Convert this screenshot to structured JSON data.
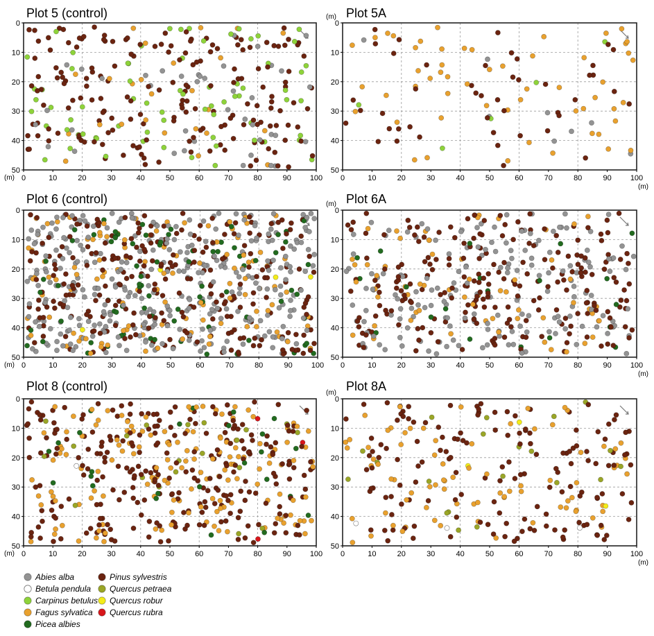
{
  "chart_data": {
    "type": "scatter",
    "legend_placement": "bottom-left",
    "axis_unit": "(m)",
    "xlim": [
      0,
      100
    ],
    "ylim": [
      0,
      50
    ],
    "xticks": [
      0,
      10,
      20,
      30,
      40,
      50,
      60,
      70,
      80,
      90,
      100
    ],
    "yticks": [
      0,
      10,
      20,
      30,
      40,
      50
    ],
    "species": [
      {
        "key": "aa",
        "name": "Abies alba",
        "color": "#939393"
      },
      {
        "key": "bp",
        "name": "Betula pendula",
        "color": "#ffffff"
      },
      {
        "key": "cb",
        "name": "Carpinus betulus",
        "color": "#8ed33a"
      },
      {
        "key": "fs",
        "name": "Fagus sylvatica",
        "color": "#e9a12e"
      },
      {
        "key": "pa",
        "name": "Picea albies",
        "color": "#226b1f"
      },
      {
        "key": "ps",
        "name": "Pinus sylvestris",
        "color": "#6b2410"
      },
      {
        "key": "qp",
        "name": "Quercus petraea",
        "color": "#9aa627"
      },
      {
        "key": "qr",
        "name": "Quercus robur",
        "color": "#f3ec1a"
      },
      {
        "key": "qru",
        "name": "Quercus rubra",
        "color": "#d8161b"
      }
    ],
    "plots": [
      {
        "id": "p5",
        "title": "Plot 5 (control)",
        "approx_counts": {
          "ps": 180,
          "cb": 70,
          "aa": 40,
          "fs": 25
        },
        "points_sampled": true
      },
      {
        "id": "p5a",
        "title": "Plot 5A",
        "approx_counts": {
          "fs": 55,
          "ps": 45,
          "aa": 8,
          "cb": 5
        },
        "points_sampled": true
      },
      {
        "id": "p6",
        "title": "Plot 6 (control)",
        "approx_counts": {
          "aa": 330,
          "ps": 260,
          "fs": 110,
          "pa": 80,
          "qr": 4
        },
        "points_sampled": true
      },
      {
        "id": "p6a",
        "title": "Plot 6A",
        "approx_counts": {
          "ps": 220,
          "aa": 170,
          "fs": 60,
          "pa": 20
        },
        "points_sampled": true
      },
      {
        "id": "p8",
        "title": "Plot 8 (control)",
        "approx_counts": {
          "ps": 260,
          "fs": 150,
          "pa": 25,
          "qp": 20,
          "bp": 1,
          "qru": 3
        },
        "points_sampled": true
      },
      {
        "id": "p8a",
        "title": "Plot 8A",
        "approx_counts": {
          "ps": 150,
          "fs": 80,
          "qp": 20,
          "bp": 3,
          "qr": 3
        },
        "points_sampled": true
      }
    ]
  }
}
